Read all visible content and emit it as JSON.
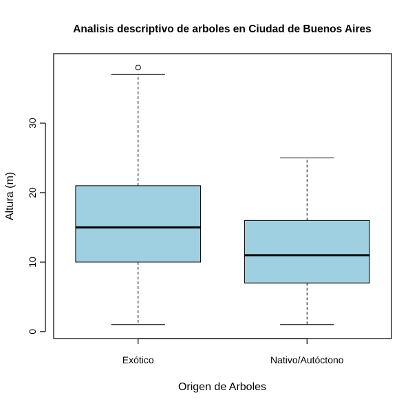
{
  "chart_data": {
    "type": "boxplot",
    "title": "Analisis descriptivo de arboles en Ciudad de Buenos Aires",
    "xlabel": "Origen de Arboles",
    "ylabel": "Altura (m)",
    "ylim": [
      -1,
      40
    ],
    "yticks": [
      0,
      10,
      20,
      30
    ],
    "box_color": "#9fd0e1",
    "categories": [
      "Exótico",
      "Nativo/Autóctono"
    ],
    "boxes": [
      {
        "category": "Exótico",
        "whisker_low": 1,
        "q1": 10,
        "median": 15,
        "q3": 21,
        "whisker_high": 37,
        "outliers": [
          38
        ]
      },
      {
        "category": "Nativo/Autóctono",
        "whisker_low": 1,
        "q1": 7,
        "median": 11,
        "q3": 16,
        "whisker_high": 25,
        "outliers": []
      }
    ],
    "grid": false,
    "legend": "none"
  }
}
